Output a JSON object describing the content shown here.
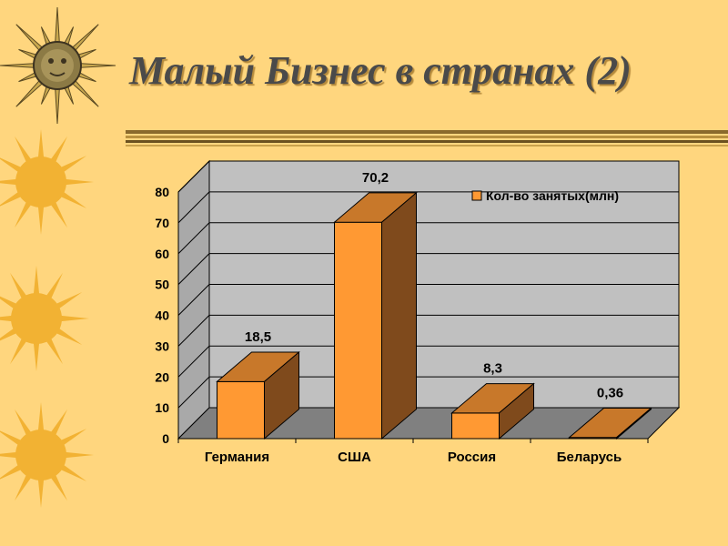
{
  "slide": {
    "title": "Малый Бизнес в странах (2)"
  },
  "chart_data": {
    "type": "bar",
    "categories": [
      "Германия",
      "США",
      "Россия",
      "Беларусь"
    ],
    "series": [
      {
        "name": "Кол-во занятых(млн)",
        "values": [
          18.5,
          70.2,
          8.3,
          0.36
        ]
      }
    ],
    "data_labels": [
      "18,5",
      "70,2",
      "8,3",
      "0,36"
    ],
    "y_ticks": [
      "0",
      "10",
      "20",
      "30",
      "40",
      "50",
      "60",
      "70",
      "80"
    ],
    "ylim": [
      0,
      80
    ],
    "grid": true,
    "legend": "top-right",
    "colors": {
      "bar_front": "#FF9933",
      "bar_top": "#C8782A",
      "bar_side": "#7F4A1C",
      "wall": "#C0C0C0",
      "floor": "#808080"
    }
  }
}
